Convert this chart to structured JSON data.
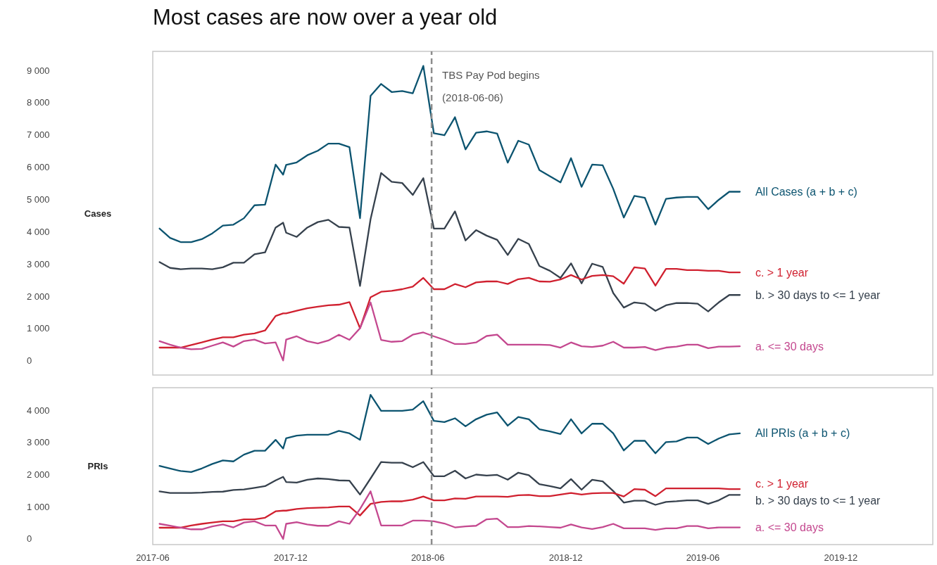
{
  "chart_data": [
    {
      "type": "line",
      "title": "Most cases are now over a year old",
      "ylabel": "Cases",
      "tick_labels": "y",
      "marker": "none",
      "line_style": "solid",
      "x": [
        "2017-06-10",
        "2017-06-24",
        "2017-07-08",
        "2017-07-22",
        "2017-08-05",
        "2017-08-19",
        "2017-09-02",
        "2017-09-16",
        "2017-09-30",
        "2017-10-14",
        "2017-10-28",
        "2017-11-11",
        "2017-11-21",
        "2017-11-25",
        "2017-12-09",
        "2017-12-23",
        "2018-01-06",
        "2018-01-20",
        "2018-02-03",
        "2018-02-17",
        "2018-03-03",
        "2018-03-17",
        "2018-03-31",
        "2018-04-14",
        "2018-04-28",
        "2018-05-12",
        "2018-05-26",
        "2018-06-09",
        "2018-06-23",
        "2018-07-07",
        "2018-07-21",
        "2018-08-04",
        "2018-08-18",
        "2018-09-01",
        "2018-09-15",
        "2018-09-29",
        "2018-10-13",
        "2018-10-27",
        "2018-11-10",
        "2018-11-24",
        "2018-12-08",
        "2018-12-22",
        "2019-01-05",
        "2019-01-19",
        "2019-02-02",
        "2019-02-16",
        "2019-03-02",
        "2019-03-16",
        "2019-03-30",
        "2019-04-13",
        "2019-04-27",
        "2019-05-11",
        "2019-05-25",
        "2019-06-08",
        "2019-06-22",
        "2019-07-06",
        "2019-07-20"
      ],
      "xlim": [
        "2017-06-01",
        "2020-04-01"
      ],
      "xticks": [
        "2017-06",
        "2017-12",
        "2018-06",
        "2018-12",
        "2019-06",
        "2019-12"
      ],
      "ylim": [
        -440,
        9590
      ],
      "yticks": [
        0,
        {
          "value": 1000,
          "label": "1 000"
        },
        {
          "value": 2000,
          "label": "2 000"
        },
        {
          "value": 3000,
          "label": "3 000"
        },
        {
          "value": 4000,
          "label": "4 000"
        },
        {
          "value": 5000,
          "label": "5 000"
        },
        {
          "value": 6000,
          "label": "6 000"
        },
        {
          "value": 7000,
          "label": "7 000"
        },
        {
          "value": 8000,
          "label": "8 000"
        },
        {
          "value": 9000,
          "label": "9 000"
        }
      ],
      "ref_lines": [
        {
          "axis": "x",
          "value": "2018-06-06",
          "label": "TBS Pay Pod begins (2018-06-06)",
          "color": "#8c8c8c",
          "line_style": "dashed"
        }
      ],
      "series": [
        {
          "name": "All Cases (a + b + c)",
          "color": "#0c5470",
          "values": [
            4100,
            3810,
            3680,
            3680,
            3770,
            3950,
            4190,
            4220,
            4420,
            4820,
            4840,
            6080,
            5770,
            6070,
            6150,
            6370,
            6510,
            6730,
            6730,
            6620,
            4420,
            8210,
            8580,
            8330,
            8360,
            8290,
            9140,
            7050,
            6990,
            7550,
            6550,
            7070,
            7110,
            7040,
            6140,
            6820,
            6700,
            5910,
            5720,
            5530,
            6280,
            5390,
            6080,
            6060,
            5330,
            4440,
            5110,
            5050,
            4220,
            5020,
            5060,
            5080,
            5080,
            4700,
            4990,
            5240,
            5240
          ]
        },
        {
          "name": "b. > 30 days to <= 1 year",
          "color": "#36414d",
          "values": [
            3060,
            2880,
            2840,
            2860,
            2860,
            2840,
            2900,
            3040,
            3040,
            3300,
            3360,
            4130,
            4280,
            3970,
            3840,
            4130,
            4300,
            4370,
            4150,
            4130,
            2320,
            4390,
            5820,
            5550,
            5510,
            5140,
            5660,
            4100,
            4100,
            4630,
            3730,
            4050,
            3880,
            3750,
            3280,
            3780,
            3620,
            2940,
            2790,
            2570,
            3020,
            2400,
            3010,
            2910,
            2100,
            1650,
            1810,
            1770,
            1550,
            1720,
            1790,
            1790,
            1770,
            1530,
            1810,
            2040,
            2040
          ]
        },
        {
          "name": "c. > 1 year",
          "color": "#d0202f",
          "values": [
            410,
            410,
            410,
            490,
            570,
            660,
            730,
            730,
            810,
            850,
            940,
            1390,
            1470,
            1470,
            1550,
            1630,
            1680,
            1720,
            1740,
            1820,
            1010,
            1970,
            2140,
            2170,
            2220,
            2300,
            2570,
            2220,
            2220,
            2380,
            2280,
            2430,
            2460,
            2460,
            2380,
            2530,
            2570,
            2460,
            2450,
            2520,
            2660,
            2520,
            2630,
            2660,
            2620,
            2390,
            2900,
            2860,
            2330,
            2850,
            2850,
            2810,
            2810,
            2790,
            2790,
            2740,
            2740
          ]
        },
        {
          "name": "a. <= 30 days",
          "color": "#c4488f",
          "values": [
            610,
            500,
            410,
            360,
            370,
            470,
            570,
            440,
            610,
            660,
            540,
            570,
            10,
            660,
            760,
            610,
            540,
            630,
            810,
            650,
            1010,
            1810,
            650,
            590,
            610,
            810,
            880,
            760,
            650,
            520,
            520,
            570,
            770,
            810,
            500,
            500,
            500,
            500,
            490,
            410,
            570,
            450,
            430,
            470,
            590,
            410,
            410,
            430,
            330,
            410,
            440,
            500,
            500,
            390,
            440,
            440,
            450
          ]
        }
      ]
    },
    {
      "type": "line",
      "ylabel": "PRIs",
      "marker": "none",
      "line_style": "solid",
      "x": [
        "2017-06-10",
        "2017-06-24",
        "2017-07-08",
        "2017-07-22",
        "2017-08-05",
        "2017-08-19",
        "2017-09-02",
        "2017-09-16",
        "2017-09-30",
        "2017-10-14",
        "2017-10-28",
        "2017-11-11",
        "2017-11-21",
        "2017-11-25",
        "2017-12-09",
        "2017-12-23",
        "2018-01-06",
        "2018-01-20",
        "2018-02-03",
        "2018-02-17",
        "2018-03-03",
        "2018-03-17",
        "2018-03-31",
        "2018-04-14",
        "2018-04-28",
        "2018-05-12",
        "2018-05-26",
        "2018-06-09",
        "2018-06-23",
        "2018-07-07",
        "2018-07-21",
        "2018-08-04",
        "2018-08-18",
        "2018-09-01",
        "2018-09-15",
        "2018-09-29",
        "2018-10-13",
        "2018-10-27",
        "2018-11-10",
        "2018-11-24",
        "2018-12-08",
        "2018-12-22",
        "2019-01-05",
        "2019-01-19",
        "2019-02-02",
        "2019-02-16",
        "2019-03-02",
        "2019-03-16",
        "2019-03-30",
        "2019-04-13",
        "2019-04-27",
        "2019-05-11",
        "2019-05-25",
        "2019-06-08",
        "2019-06-22",
        "2019-07-06",
        "2019-07-20"
      ],
      "xlim": [
        "2017-06-01",
        "2020-04-01"
      ],
      "xticks": [
        "2017-06",
        "2017-12",
        "2018-06",
        "2018-12",
        "2019-06",
        "2019-12"
      ],
      "ylim": [
        -175,
        4700
      ],
      "yticks": [
        0,
        {
          "value": 1000,
          "label": "1 000"
        },
        {
          "value": 2000,
          "label": "2 000"
        },
        {
          "value": 3000,
          "label": "3 000"
        },
        {
          "value": 4000,
          "label": "4 000"
        }
      ],
      "ref_lines": [
        {
          "axis": "x",
          "value": "2018-06-06",
          "color": "#8c8c8c",
          "line_style": "dashed"
        }
      ],
      "series": [
        {
          "name": "All PRIs (a + b + c)",
          "color": "#0c5470",
          "values": [
            2270,
            2190,
            2110,
            2080,
            2190,
            2330,
            2440,
            2410,
            2620,
            2740,
            2740,
            3080,
            2810,
            3130,
            3210,
            3240,
            3240,
            3240,
            3360,
            3280,
            3080,
            4480,
            3980,
            3980,
            3980,
            4020,
            4280,
            3670,
            3630,
            3750,
            3500,
            3720,
            3860,
            3930,
            3520,
            3790,
            3720,
            3410,
            3340,
            3260,
            3720,
            3280,
            3580,
            3580,
            3280,
            2750,
            3050,
            3050,
            2660,
            3010,
            3030,
            3150,
            3150,
            2950,
            3120,
            3250,
            3280
          ]
        },
        {
          "name": "b. > 30 days to <= 1 year",
          "color": "#36414d",
          "values": [
            1480,
            1430,
            1430,
            1430,
            1440,
            1460,
            1470,
            1520,
            1540,
            1590,
            1640,
            1820,
            1930,
            1770,
            1750,
            1840,
            1880,
            1860,
            1820,
            1810,
            1380,
            1880,
            2390,
            2370,
            2370,
            2230,
            2390,
            1950,
            1950,
            2120,
            1880,
            2000,
            1970,
            1990,
            1840,
            2060,
            1980,
            1700,
            1640,
            1570,
            1860,
            1530,
            1840,
            1790,
            1490,
            1130,
            1190,
            1190,
            1060,
            1150,
            1170,
            1200,
            1200,
            1090,
            1200,
            1370,
            1370
          ]
        },
        {
          "name": "c. > 1 year",
          "color": "#d0202f",
          "values": [
            350,
            350,
            350,
            420,
            470,
            510,
            550,
            550,
            610,
            610,
            660,
            860,
            880,
            880,
            930,
            960,
            970,
            980,
            1010,
            1010,
            730,
            1090,
            1150,
            1170,
            1170,
            1220,
            1320,
            1200,
            1200,
            1260,
            1250,
            1320,
            1320,
            1320,
            1310,
            1360,
            1370,
            1330,
            1330,
            1380,
            1430,
            1380,
            1420,
            1430,
            1430,
            1320,
            1550,
            1530,
            1330,
            1570,
            1570,
            1570,
            1570,
            1570,
            1570,
            1550,
            1550
          ]
        },
        {
          "name": "a. <= 30 days",
          "color": "#c4488f",
          "values": [
            470,
            410,
            350,
            300,
            300,
            390,
            450,
            360,
            510,
            550,
            420,
            420,
            0,
            470,
            520,
            450,
            410,
            410,
            550,
            470,
            930,
            1480,
            420,
            420,
            420,
            570,
            570,
            550,
            480,
            360,
            390,
            410,
            610,
            630,
            370,
            370,
            400,
            390,
            370,
            350,
            450,
            360,
            310,
            370,
            470,
            330,
            330,
            330,
            280,
            330,
            330,
            400,
            400,
            330,
            360,
            360,
            360
          ]
        }
      ]
    }
  ]
}
